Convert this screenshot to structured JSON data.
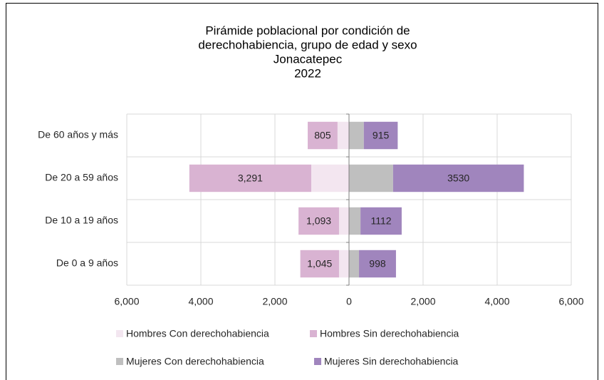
{
  "chart_data": {
    "type": "bar",
    "orientation": "horizontal",
    "stacked": true,
    "title": [
      "Pirámide poblacional por condición de",
      "derechohabiencia, grupo de edad y sexo",
      "Jonacatepec",
      "2022"
    ],
    "categories": [
      "De 60 años y más",
      "De 20 a 59 años",
      "De 10 a 19 años",
      "De 0 a 9 años"
    ],
    "series": [
      {
        "name": "Hombres Con derechohabiencia",
        "color": "#f3e6f0",
        "values": [
          -310,
          -1020,
          -270,
          -270
        ]
      },
      {
        "name": "Hombres Sin derechohabiencia",
        "color": "#d9b3d2",
        "values": [
          -805,
          -3291,
          -1093,
          -1045
        ],
        "value_labels": [
          "805",
          "3,291",
          "1,093",
          "1,045"
        ]
      },
      {
        "name": "Mujeres Con derechohabiencia",
        "color": "#bfbfbf",
        "values": [
          400,
          1190,
          310,
          270
        ]
      },
      {
        "name": "Mujeres Sin derechohabiencia",
        "color": "#a085bd",
        "values": [
          915,
          3530,
          1112,
          998
        ]
      }
    ],
    "xlim": [
      -6000,
      6000
    ],
    "xticks": [
      {
        "value": -6000,
        "label": "6,000"
      },
      {
        "value": -4000,
        "label": "4,000"
      },
      {
        "value": -2000,
        "label": "2,000"
      },
      0,
      {
        "value": 2000,
        "label": "2,000"
      },
      {
        "value": 4000,
        "label": "4,000"
      },
      {
        "value": 6000,
        "label": "6,000"
      }
    ],
    "grid": true,
    "legend": "bottom"
  }
}
